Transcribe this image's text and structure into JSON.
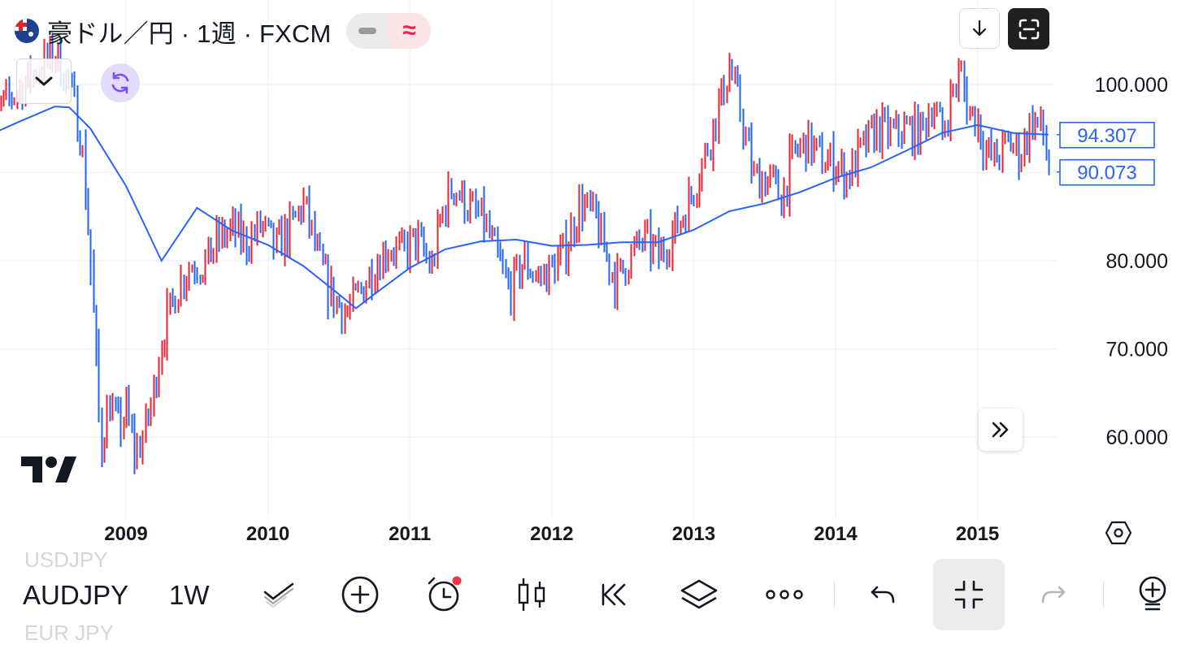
{
  "header": {
    "title": "豪ドル／円 · 1週 · FXCM",
    "flag_icon": "australia-flag-icon"
  },
  "colors": {
    "up": "#e8212f",
    "down": "#1f63f0",
    "ma_line": "#2962ff",
    "grid": "#f0f3fa",
    "accent": "#7b4dff"
  },
  "price_tags": {
    "ma": "94.307",
    "last": "90.073"
  },
  "toolbar": {
    "symbol": "AUDJPY",
    "symbol_above": "USDJPY",
    "symbol_below": "EUR JPY",
    "interval": "1W",
    "icons": [
      "drawing-tools-icon",
      "add-icon",
      "alert-clock-icon",
      "candles-icon",
      "replay-icon",
      "layers-icon",
      "more-icon",
      "undo-icon",
      "collapse-icon",
      "redo-icon",
      "ideas-icon"
    ]
  },
  "chart_data": {
    "type": "ohlc_bar",
    "symbol": "AUDJPY",
    "title": "豪ドル／円 · 1週 · FXCM",
    "x_tick_labels": [
      "2009",
      "2010",
      "2011",
      "2012",
      "2013",
      "2014",
      "2015"
    ],
    "y_tick_labels": [
      "100.000",
      "80.000",
      "70.000",
      "60.000"
    ],
    "ylim": [
      51,
      107
    ],
    "xlim": [
      2008.0,
      2015.55
    ],
    "grid": true,
    "up_color": "#e8212f",
    "down_color": "#1f63f0",
    "moving_average": {
      "color": "#2962ff",
      "last_value": 94.307,
      "points": [
        [
          2008.0,
          94.0
        ],
        [
          2008.25,
          95.8
        ],
        [
          2008.5,
          97.5
        ],
        [
          2008.6,
          97.4
        ],
        [
          2008.75,
          95.0
        ],
        [
          2009.0,
          88.5
        ],
        [
          2009.25,
          80.0
        ],
        [
          2009.5,
          86.0
        ],
        [
          2009.75,
          83.4
        ],
        [
          2010.0,
          81.8
        ],
        [
          2010.25,
          79.4
        ],
        [
          2010.5,
          76.2
        ],
        [
          2010.62,
          74.6
        ],
        [
          2010.75,
          76.2
        ],
        [
          2011.0,
          79.2
        ],
        [
          2011.25,
          81.3
        ],
        [
          2011.5,
          82.2
        ],
        [
          2011.75,
          82.4
        ],
        [
          2012.0,
          81.7
        ],
        [
          2012.25,
          81.8
        ],
        [
          2012.5,
          82.1
        ],
        [
          2012.75,
          82.1
        ],
        [
          2013.0,
          83.5
        ],
        [
          2013.25,
          85.6
        ],
        [
          2013.5,
          86.5
        ],
        [
          2013.75,
          87.8
        ],
        [
          2014.0,
          89.4
        ],
        [
          2014.25,
          90.6
        ],
        [
          2014.5,
          92.5
        ],
        [
          2014.75,
          94.5
        ],
        [
          2015.0,
          95.4
        ],
        [
          2015.25,
          94.5
        ],
        [
          2015.5,
          94.3
        ]
      ]
    },
    "last_price": 90.073,
    "close_path": [
      [
        2008.0,
        99.8
      ],
      [
        2008.05,
        96.0
      ],
      [
        2008.12,
        97.5
      ],
      [
        2008.25,
        99.5
      ],
      [
        2008.4,
        102.2
      ],
      [
        2008.5,
        103.4
      ],
      [
        2008.6,
        100.0
      ],
      [
        2008.68,
        94.0
      ],
      [
        2008.74,
        82.0
      ],
      [
        2008.79,
        68.0
      ],
      [
        2008.82,
        58.5
      ],
      [
        2008.88,
        64.0
      ],
      [
        2008.95,
        61.0
      ],
      [
        2009.0,
        63.0
      ],
      [
        2009.06,
        58.2
      ],
      [
        2009.12,
        60.0
      ],
      [
        2009.18,
        64.0
      ],
      [
        2009.25,
        71.0
      ],
      [
        2009.35,
        76.5
      ],
      [
        2009.45,
        79.5
      ],
      [
        2009.55,
        79.5
      ],
      [
        2009.65,
        82.5
      ],
      [
        2009.75,
        83.5
      ],
      [
        2009.85,
        82.0
      ],
      [
        2009.95,
        84.0
      ],
      [
        2010.05,
        81.5
      ],
      [
        2010.15,
        83.5
      ],
      [
        2010.25,
        86.5
      ],
      [
        2010.35,
        80.5
      ],
      [
        2010.45,
        76.0
      ],
      [
        2010.55,
        74.0
      ],
      [
        2010.65,
        76.5
      ],
      [
        2010.75,
        79.5
      ],
      [
        2010.85,
        81.5
      ],
      [
        2010.95,
        81.0
      ],
      [
        2011.05,
        82.5
      ],
      [
        2011.15,
        79.0
      ],
      [
        2011.22,
        85.0
      ],
      [
        2011.3,
        88.5
      ],
      [
        2011.42,
        86.0
      ],
      [
        2011.52,
        84.5
      ],
      [
        2011.6,
        81.0
      ],
      [
        2011.7,
        76.5
      ],
      [
        2011.8,
        80.0
      ],
      [
        2011.9,
        78.0
      ],
      [
        2012.0,
        79.0
      ],
      [
        2012.1,
        81.5
      ],
      [
        2012.2,
        86.5
      ],
      [
        2012.3,
        85.0
      ],
      [
        2012.38,
        80.5
      ],
      [
        2012.45,
        77.5
      ],
      [
        2012.55,
        80.5
      ],
      [
        2012.65,
        82.5
      ],
      [
        2012.75,
        80.5
      ],
      [
        2012.85,
        83.0
      ],
      [
        2012.95,
        86.0
      ],
      [
        2013.05,
        90.5
      ],
      [
        2013.15,
        96.0
      ],
      [
        2013.25,
        102.0
      ],
      [
        2013.32,
        97.5
      ],
      [
        2013.42,
        89.5
      ],
      [
        2013.55,
        89.0
      ],
      [
        2013.62,
        87.0
      ],
      [
        2013.7,
        92.0
      ],
      [
        2013.8,
        93.5
      ],
      [
        2013.9,
        91.5
      ],
      [
        2014.0,
        91.0
      ],
      [
        2014.08,
        89.5
      ],
      [
        2014.18,
        92.5
      ],
      [
        2014.28,
        95.0
      ],
      [
        2014.4,
        94.5
      ],
      [
        2014.5,
        95.0
      ],
      [
        2014.6,
        94.5
      ],
      [
        2014.68,
        98.0
      ],
      [
        2014.75,
        94.5
      ],
      [
        2014.82,
        99.0
      ],
      [
        2014.88,
        101.5
      ],
      [
        2014.93,
        97.0
      ],
      [
        2015.0,
        96.0
      ],
      [
        2015.05,
        92.5
      ],
      [
        2015.12,
        91.5
      ],
      [
        2015.22,
        93.5
      ],
      [
        2015.3,
        92.0
      ],
      [
        2015.38,
        96.0
      ],
      [
        2015.45,
        95.0
      ],
      [
        2015.5,
        90.7
      ]
    ]
  }
}
